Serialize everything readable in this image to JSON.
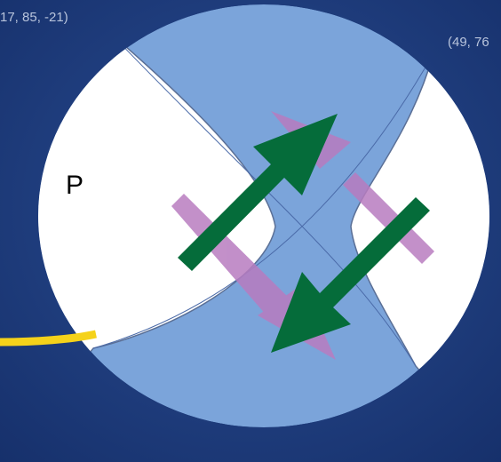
{
  "labels": {
    "top_left": "17, 85, -21)",
    "top_right": "(49, 76",
    "region": "P"
  }
}
